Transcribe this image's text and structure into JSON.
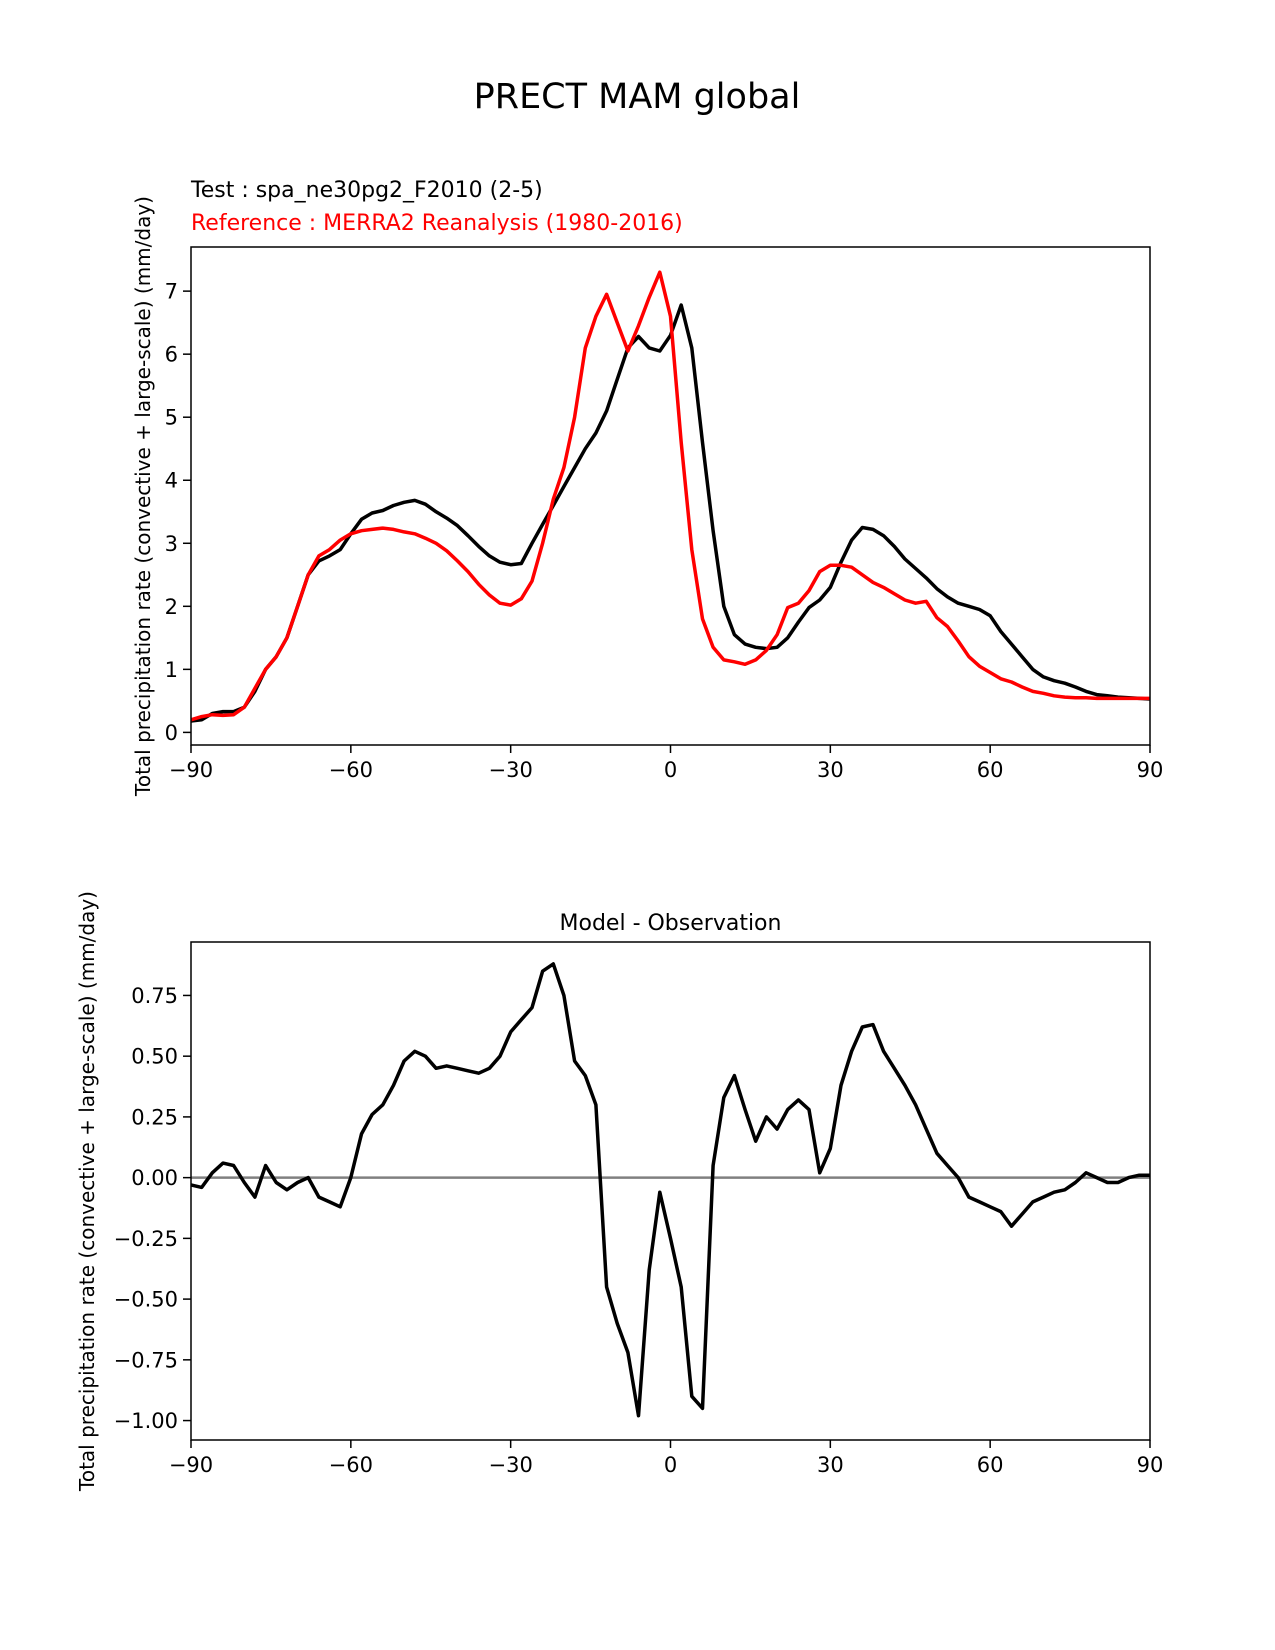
{
  "figure": {
    "title": "PRECT MAM global",
    "test_label": "Test : spa_ne30pg2_F2010 (2-5)",
    "reference_label": "Reference : MERRA2 Reanalysis (1980-2016)",
    "colors": {
      "test": "#000000",
      "reference": "#ff0000",
      "zero_line": "#808080"
    }
  },
  "chart_data": [
    {
      "type": "line",
      "title": "",
      "xlabel": "",
      "ylabel": "Total precipitation rate (convective + large-scale) (mm/day)",
      "xlim": [
        -90,
        90
      ],
      "ylim": [
        -0.2,
        7.7
      ],
      "xticks": [
        -90,
        -60,
        -30,
        0,
        30,
        60,
        90
      ],
      "xtick_labels": [
        "−90",
        "−60",
        "−30",
        "0",
        "30",
        "60",
        "90"
      ],
      "yticks": [
        0,
        1,
        2,
        3,
        4,
        5,
        6,
        7
      ],
      "ytick_labels": [
        "0",
        "1",
        "2",
        "3",
        "4",
        "5",
        "6",
        "7"
      ],
      "series": [
        {
          "name": "Test : spa_ne30pg2_F2010 (2-5)",
          "color": "#000000",
          "x": [
            -90,
            -88,
            -86,
            -84,
            -82,
            -80,
            -78,
            -76,
            -74,
            -72,
            -70,
            -68,
            -66,
            -64,
            -62,
            -60,
            -58,
            -56,
            -54,
            -52,
            -50,
            -48,
            -46,
            -44,
            -42,
            -40,
            -38,
            -36,
            -34,
            -32,
            -30,
            -28,
            -26,
            -24,
            -22,
            -20,
            -18,
            -16,
            -14,
            -12,
            -10,
            -8,
            -6,
            -4,
            -2,
            0,
            2,
            4,
            6,
            8,
            10,
            12,
            14,
            16,
            18,
            20,
            22,
            24,
            26,
            28,
            30,
            32,
            34,
            36,
            38,
            40,
            42,
            44,
            46,
            48,
            50,
            52,
            54,
            56,
            58,
            60,
            62,
            64,
            66,
            68,
            70,
            72,
            74,
            76,
            78,
            80,
            82,
            84,
            86,
            88,
            90
          ],
          "y": [
            0.18,
            0.2,
            0.3,
            0.33,
            0.33,
            0.4,
            0.65,
            1.0,
            1.2,
            1.5,
            2.0,
            2.5,
            2.72,
            2.8,
            2.9,
            3.15,
            3.38,
            3.48,
            3.52,
            3.6,
            3.65,
            3.68,
            3.62,
            3.5,
            3.4,
            3.28,
            3.12,
            2.95,
            2.8,
            2.7,
            2.66,
            2.68,
            3.0,
            3.3,
            3.6,
            3.9,
            4.2,
            4.5,
            4.75,
            5.1,
            5.6,
            6.1,
            6.28,
            6.1,
            6.05,
            6.3,
            6.78,
            6.1,
            4.6,
            3.2,
            2.0,
            1.55,
            1.4,
            1.35,
            1.33,
            1.35,
            1.5,
            1.75,
            1.98,
            2.1,
            2.3,
            2.7,
            3.05,
            3.25,
            3.22,
            3.12,
            2.95,
            2.75,
            2.6,
            2.45,
            2.28,
            2.15,
            2.05,
            2.0,
            1.95,
            1.85,
            1.6,
            1.4,
            1.2,
            1.0,
            0.88,
            0.82,
            0.78,
            0.72,
            0.65,
            0.6,
            0.58,
            0.56,
            0.55,
            0.54,
            0.53
          ]
        },
        {
          "name": "Reference : MERRA2 Reanalysis (1980-2016)",
          "color": "#ff0000",
          "x": [
            -90,
            -88,
            -86,
            -84,
            -82,
            -80,
            -78,
            -76,
            -74,
            -72,
            -70,
            -68,
            -66,
            -64,
            -62,
            -60,
            -58,
            -56,
            -54,
            -52,
            -50,
            -48,
            -46,
            -44,
            -42,
            -40,
            -38,
            -36,
            -34,
            -32,
            -30,
            -28,
            -26,
            -24,
            -22,
            -20,
            -18,
            -16,
            -14,
            -12,
            -10,
            -8,
            -6,
            -4,
            -2,
            0,
            2,
            4,
            6,
            8,
            10,
            12,
            14,
            16,
            18,
            20,
            22,
            24,
            26,
            28,
            30,
            32,
            34,
            36,
            38,
            40,
            42,
            44,
            46,
            48,
            50,
            52,
            54,
            56,
            58,
            60,
            62,
            64,
            66,
            68,
            70,
            72,
            74,
            76,
            78,
            80,
            82,
            84,
            86,
            88,
            90
          ],
          "y": [
            0.2,
            0.25,
            0.28,
            0.27,
            0.28,
            0.4,
            0.7,
            1.0,
            1.2,
            1.5,
            2.0,
            2.5,
            2.8,
            2.9,
            3.05,
            3.15,
            3.2,
            3.22,
            3.24,
            3.22,
            3.18,
            3.15,
            3.08,
            3.0,
            2.88,
            2.72,
            2.55,
            2.35,
            2.18,
            2.05,
            2.02,
            2.12,
            2.4,
            3.0,
            3.7,
            4.2,
            5.0,
            6.1,
            6.6,
            6.95,
            6.5,
            6.05,
            6.45,
            6.9,
            7.3,
            6.6,
            4.6,
            2.9,
            1.8,
            1.35,
            1.15,
            1.12,
            1.08,
            1.15,
            1.3,
            1.55,
            1.98,
            2.05,
            2.25,
            2.55,
            2.65,
            2.65,
            2.62,
            2.5,
            2.38,
            2.3,
            2.2,
            2.1,
            2.05,
            2.08,
            1.82,
            1.68,
            1.45,
            1.2,
            1.05,
            0.95,
            0.85,
            0.8,
            0.72,
            0.65,
            0.62,
            0.58,
            0.56,
            0.55,
            0.55,
            0.54,
            0.54,
            0.54,
            0.54,
            0.54,
            0.54
          ]
        }
      ]
    },
    {
      "type": "line",
      "title": "Model - Observation",
      "xlabel": "",
      "ylabel": "Total precipitation rate (convective + large-scale) (mm/day)",
      "xlim": [
        -90,
        90
      ],
      "ylim": [
        -1.08,
        0.97
      ],
      "xticks": [
        -90,
        -60,
        -30,
        0,
        30,
        60,
        90
      ],
      "xtick_labels": [
        "−90",
        "−60",
        "−30",
        "0",
        "30",
        "60",
        "90"
      ],
      "yticks": [
        -1.0,
        -0.75,
        -0.5,
        -0.25,
        0.0,
        0.25,
        0.5,
        0.75
      ],
      "ytick_labels": [
        "−1.00",
        "−0.75",
        "−0.50",
        "−0.25",
        "0.00",
        "0.25",
        "0.50",
        "0.75"
      ],
      "zero_line": true,
      "series": [
        {
          "name": "Model - Observation",
          "color": "#000000",
          "x": [
            -90,
            -88,
            -86,
            -84,
            -82,
            -80,
            -78,
            -76,
            -74,
            -72,
            -70,
            -68,
            -66,
            -64,
            -62,
            -60,
            -58,
            -56,
            -54,
            -52,
            -50,
            -48,
            -46,
            -44,
            -42,
            -40,
            -38,
            -36,
            -34,
            -32,
            -30,
            -28,
            -26,
            -24,
            -22,
            -20,
            -18,
            -16,
            -14,
            -12,
            -10,
            -8,
            -6,
            -4,
            -2,
            0,
            2,
            4,
            6,
            8,
            10,
            12,
            14,
            16,
            18,
            20,
            22,
            24,
            26,
            28,
            30,
            32,
            34,
            36,
            38,
            40,
            42,
            44,
            46,
            48,
            50,
            52,
            54,
            56,
            58,
            60,
            62,
            64,
            66,
            68,
            70,
            72,
            74,
            76,
            78,
            80,
            82,
            84,
            86,
            88,
            90
          ],
          "y": [
            -0.03,
            -0.04,
            0.02,
            0.06,
            0.05,
            -0.02,
            -0.08,
            0.05,
            -0.02,
            -0.05,
            -0.02,
            0.0,
            -0.08,
            -0.1,
            -0.12,
            0.0,
            0.18,
            0.26,
            0.3,
            0.38,
            0.48,
            0.52,
            0.5,
            0.45,
            0.46,
            0.45,
            0.44,
            0.43,
            0.45,
            0.5,
            0.6,
            0.65,
            0.7,
            0.85,
            0.88,
            0.75,
            0.48,
            0.42,
            0.3,
            -0.45,
            -0.6,
            -0.72,
            -0.98,
            -0.38,
            -0.06,
            -0.25,
            -0.45,
            -0.9,
            -0.95,
            0.05,
            0.33,
            0.42,
            0.28,
            0.15,
            0.25,
            0.2,
            0.28,
            0.32,
            0.28,
            0.02,
            0.12,
            0.38,
            0.52,
            0.62,
            0.63,
            0.52,
            0.45,
            0.38,
            0.3,
            0.2,
            0.1,
            0.05,
            0.0,
            -0.08,
            -0.1,
            -0.12,
            -0.14,
            -0.2,
            -0.15,
            -0.1,
            -0.08,
            -0.06,
            -0.05,
            -0.02,
            0.02,
            0.0,
            -0.02,
            -0.02,
            0.0,
            0.01,
            0.01
          ]
        }
      ]
    }
  ]
}
